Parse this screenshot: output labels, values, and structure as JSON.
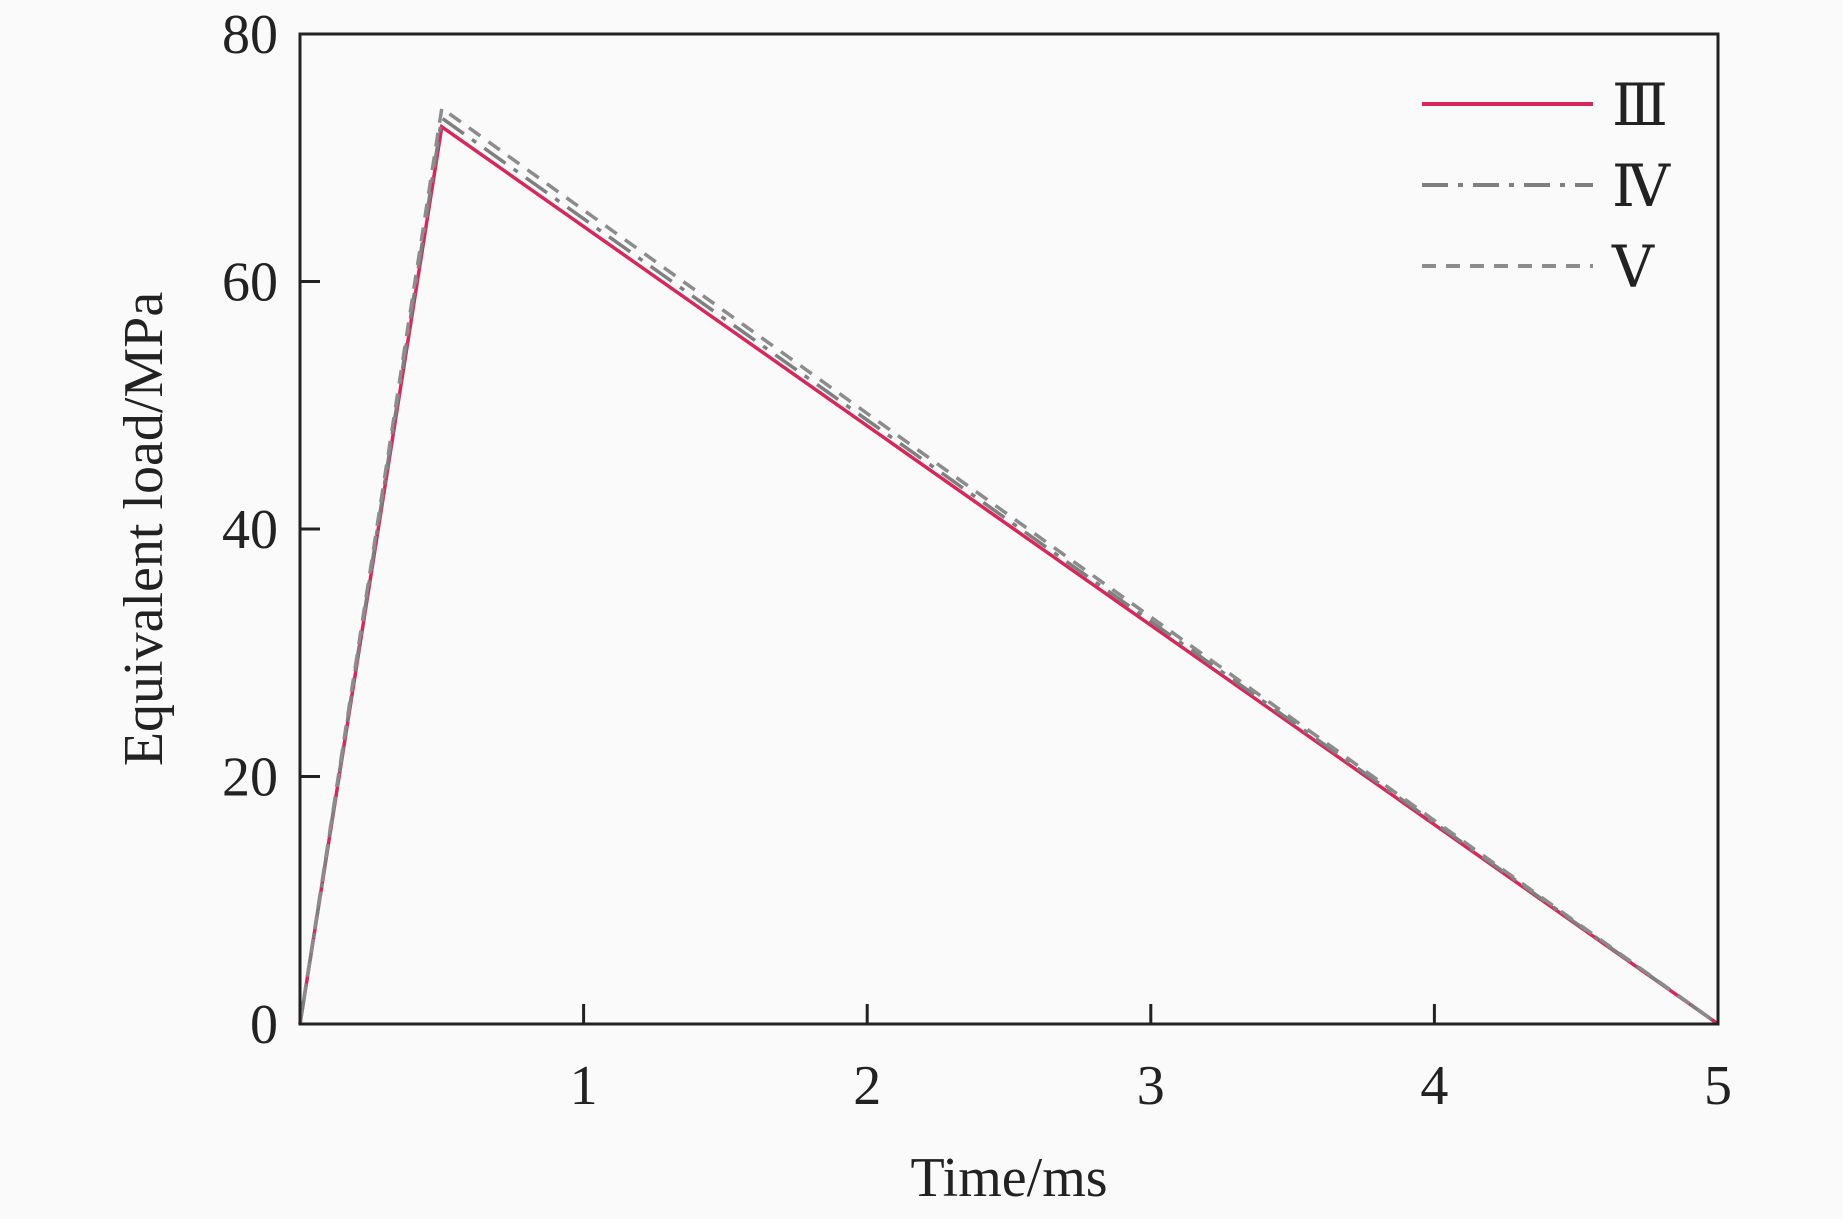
{
  "chart_data": {
    "type": "line",
    "xlabel": "Time/ms",
    "ylabel": "Equivalent load/MPa",
    "xlim": [
      0,
      5
    ],
    "ylim": [
      0,
      80
    ],
    "xticks": [
      1,
      2,
      3,
      4,
      5
    ],
    "xtick_labels": [
      "1",
      "2",
      "3",
      "4",
      "5"
    ],
    "yticks": [
      0,
      20,
      40,
      60,
      80
    ],
    "ytick_labels": [
      "0",
      "20",
      "40",
      "60",
      "80"
    ],
    "grid": false,
    "legend_position": "top-right",
    "series": [
      {
        "name": "Ⅲ",
        "color": "#d6285a",
        "style": "solid",
        "points": [
          [
            0,
            0
          ],
          [
            0.5,
            72.5
          ],
          [
            5,
            0
          ]
        ]
      },
      {
        "name": "Ⅳ",
        "color": "#7f7f7f",
        "style": "dashdot",
        "points": [
          [
            0,
            0
          ],
          [
            0.5,
            73.2
          ],
          [
            5,
            0
          ]
        ]
      },
      {
        "name": "Ⅴ",
        "color": "#8c8c8c",
        "style": "dashed",
        "points": [
          [
            0,
            0
          ],
          [
            0.5,
            74.0
          ],
          [
            5,
            0
          ]
        ]
      }
    ]
  }
}
